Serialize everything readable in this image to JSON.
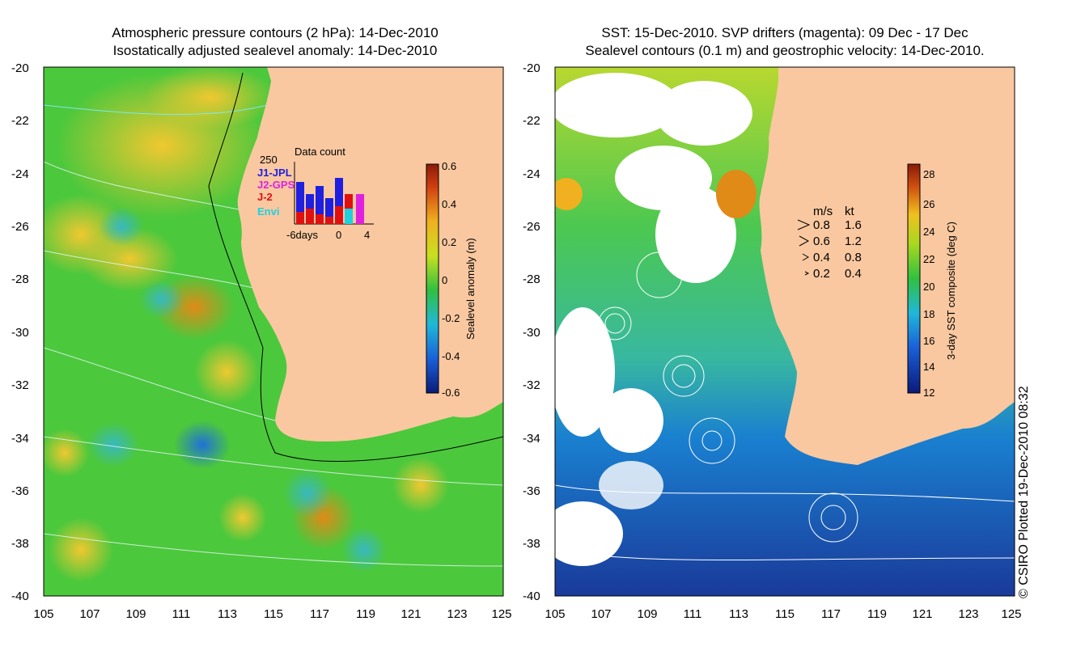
{
  "left_panel": {
    "title_line1": "Atmospheric pressure contours (2 hPa): 14-Dec-2010",
    "title_line2": "Isostatically adjusted sealevel anomaly: 14-Dec-2010",
    "colorbar": {
      "label": "Sealevel anomaly (m)",
      "ticks": [
        "0.6",
        "0.4",
        "0.2",
        "0",
        "-0.2",
        "-0.4",
        "-0.6"
      ]
    },
    "data_count": {
      "title": "Data count",
      "max_label": "250",
      "series": [
        {
          "name": "J1-JPL",
          "color": "#1f1fe0"
        },
        {
          "name": "J2-GPS",
          "color": "#e020e0"
        },
        {
          "name": "J-2",
          "color": "#e01010"
        },
        {
          "name": "Envi",
          "color": "#20d0e0"
        }
      ],
      "x_labels": [
        "-6days",
        "0",
        "4"
      ]
    }
  },
  "right_panel": {
    "title_line1": "SST: 15-Dec-2010. SVP drifters (magenta): 09 Dec - 17 Dec",
    "title_line2": "Sealevel contours (0.1 m) and geostrophic velocity: 14-Dec-2010.",
    "colorbar": {
      "label": "3-day SST composite (deg C)",
      "ticks": [
        "28",
        "26",
        "24",
        "22",
        "20",
        "18",
        "16",
        "14",
        "12"
      ]
    },
    "velocity_legend": {
      "header_ms": "m/s",
      "header_kt": "kt",
      "rows": [
        {
          "ms": "0.8",
          "kt": "1.6"
        },
        {
          "ms": "0.6",
          "kt": "1.2"
        },
        {
          "ms": "0.4",
          "kt": "0.8"
        },
        {
          "ms": "0.2",
          "kt": "0.4"
        }
      ]
    }
  },
  "axes": {
    "lat_labels": [
      "-20",
      "-22",
      "-24",
      "-26",
      "-28",
      "-30",
      "-32",
      "-34",
      "-36",
      "-38",
      "-40"
    ],
    "lon_labels": [
      "105",
      "107",
      "109",
      "111",
      "113",
      "115",
      "117",
      "119",
      "121",
      "123",
      "125"
    ]
  },
  "copyright": "© CSIRO Plotted 19-Dec-2010 08:32",
  "colors": {
    "land": "#f9c8a0",
    "ocean_green": "#4cc83c",
    "sst_blue": "#1a5fb8"
  }
}
